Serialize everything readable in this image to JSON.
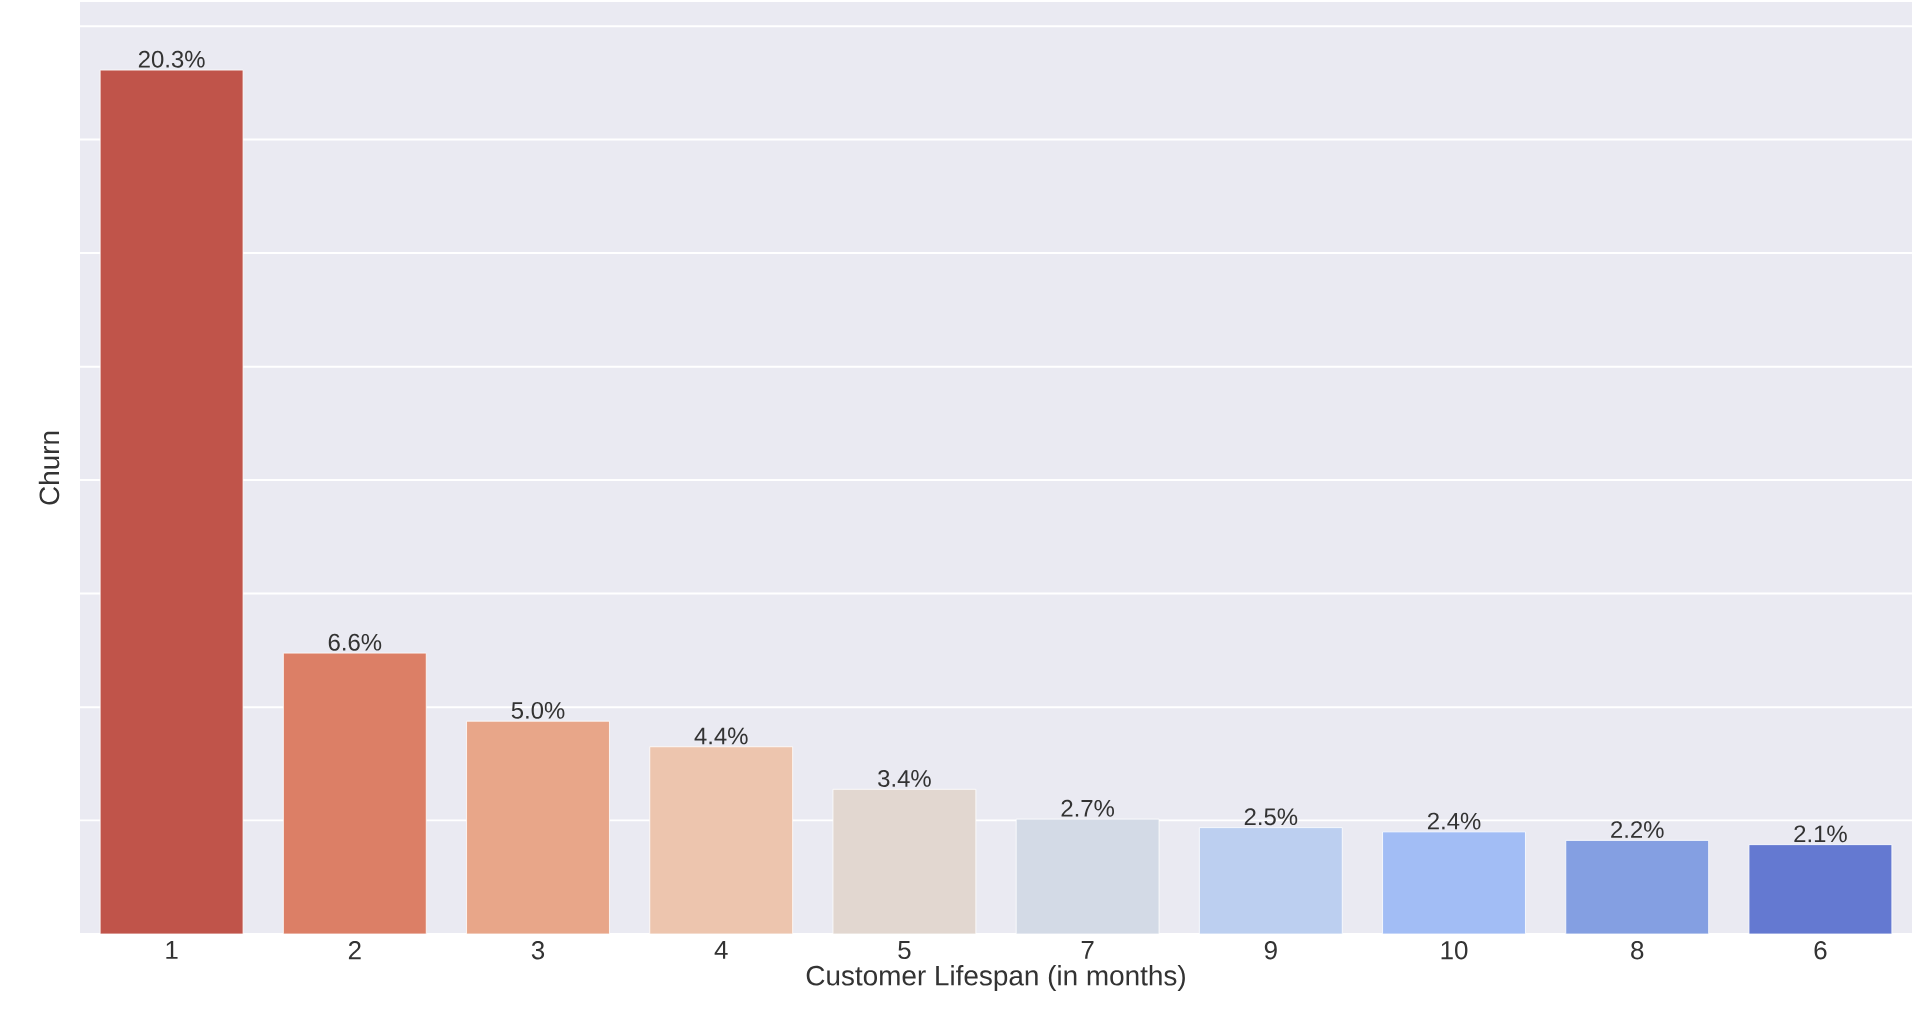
{
  "chart_data": {
    "type": "bar",
    "xlabel": "Customer Lifespan (in months)",
    "ylabel": "Churn",
    "categories": [
      "1",
      "2",
      "3",
      "4",
      "5",
      "7",
      "9",
      "10",
      "8",
      "6"
    ],
    "values": [
      20.3,
      6.6,
      5.0,
      4.4,
      3.4,
      2.7,
      2.5,
      2.4,
      2.2,
      2.1
    ],
    "value_labels": [
      "20.3%",
      "6.6%",
      "5.0%",
      "4.4%",
      "3.4%",
      "2.7%",
      "2.5%",
      "2.4%",
      "2.2%",
      "2.1%"
    ],
    "colors": [
      "#c0544a",
      "#dc7f66",
      "#e8a689",
      "#edc5ae",
      "#e2d7d0",
      "#d3dae6",
      "#bccff0",
      "#a2bdf5",
      "#849fe2",
      "#6479d1"
    ],
    "ylim": [
      0,
      21.9
    ],
    "yticks": [
      {
        "value": 0,
        "label": null
      },
      {
        "value": 2.67,
        "label": null
      },
      {
        "value": 5.33,
        "label": null
      },
      {
        "value": 8,
        "label": null
      },
      {
        "value": 10.67,
        "label": null
      },
      {
        "value": 13.33,
        "label": null
      },
      {
        "value": 16,
        "label": null
      },
      {
        "value": 18.67,
        "label": null
      },
      {
        "value": 21.33,
        "label": null
      }
    ],
    "grid": "y",
    "tick_labels": "x"
  }
}
